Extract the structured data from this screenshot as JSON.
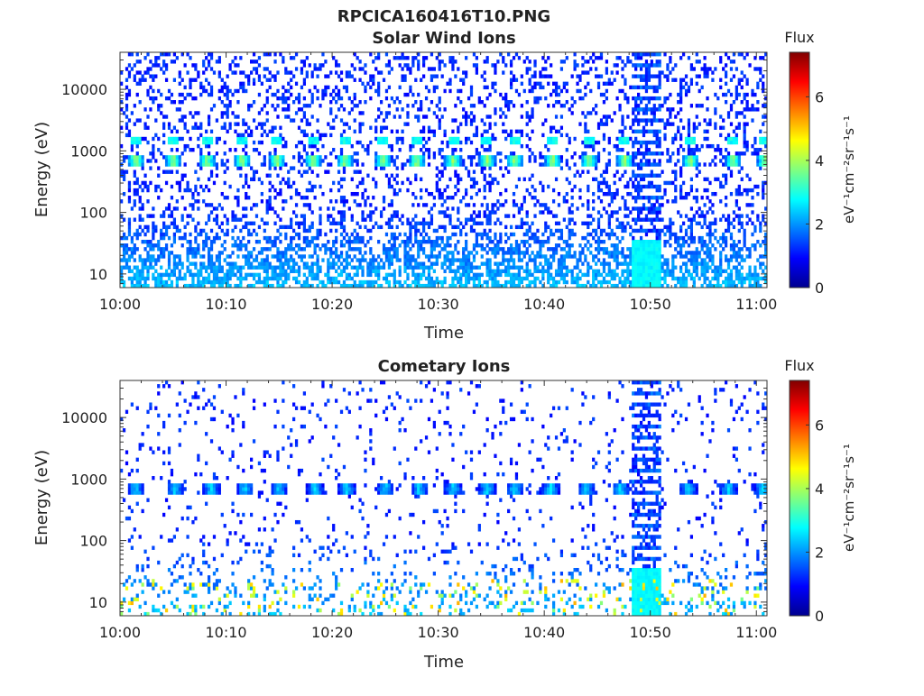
{
  "page": {
    "title": "RPCICA160416T10.PNG"
  },
  "chart_data": [
    {
      "type": "heatmap",
      "title": "Solar Wind Ions",
      "xlabel": "Time",
      "ylabel": "Energy (eV)",
      "x_ticks": [
        "10:00",
        "10:10",
        "10:20",
        "10:30",
        "10:40",
        "10:50",
        "11:00"
      ],
      "x_range_minutes": [
        0,
        61
      ],
      "y_scale": "log",
      "y_ticks": [
        10,
        100,
        1000,
        10000
      ],
      "y_tick_labels": [
        "10",
        "100",
        "1000",
        "10000"
      ],
      "y_range_eV": [
        6,
        40000
      ],
      "colorbar": {
        "label": "Flux",
        "units": "eV⁻¹cm⁻²sr⁻¹s⁻¹",
        "ticks": [
          0,
          2,
          4,
          6
        ],
        "range": [
          0,
          7.4
        ],
        "colormap": "jet"
      },
      "features": {
        "bursts_minutes": [
          1.5,
          5,
          8.2,
          11.5,
          14.8,
          18.2,
          21.2,
          24.8,
          28,
          31.4,
          34.6,
          37.2,
          40.8,
          44.2,
          47.6,
          53.8,
          57.8,
          60.8
        ],
        "burst_energy_eV": 700,
        "burst_flux": 3.6,
        "secondary_energy_eV": 1500,
        "vertical_band_minutes": [
          48.2,
          51
        ],
        "background_density": 0.22
      }
    },
    {
      "type": "heatmap",
      "title": "Cometary Ions",
      "xlabel": "Time",
      "ylabel": "Energy (eV)",
      "x_ticks": [
        "10:00",
        "10:10",
        "10:20",
        "10:30",
        "10:40",
        "10:50",
        "11:00"
      ],
      "x_range_minutes": [
        0,
        61
      ],
      "y_scale": "log",
      "y_ticks": [
        10,
        100,
        1000,
        10000
      ],
      "y_tick_labels": [
        "10",
        "100",
        "1000",
        "10000"
      ],
      "y_range_eV": [
        6,
        40000
      ],
      "colorbar": {
        "label": "Flux",
        "units": "eV⁻¹cm⁻²sr⁻¹s⁻¹",
        "ticks": [
          0,
          2,
          4,
          6
        ],
        "range": [
          0,
          7.4
        ],
        "colormap": "jet"
      },
      "features": {
        "bursts_minutes": [
          1.5,
          5.2,
          8.6,
          11.8,
          15,
          18.4,
          21.4,
          25,
          28.2,
          31.4,
          34.6,
          37.2,
          40.6,
          44,
          47.2,
          50.2,
          53.6,
          57.4,
          60.6
        ],
        "burst_energy_eV": 650,
        "burst_flux": 2.2,
        "secondary_energy_eV": 0,
        "vertical_band_minutes": [
          48.2,
          51
        ],
        "background_density": 0.06
      }
    }
  ]
}
